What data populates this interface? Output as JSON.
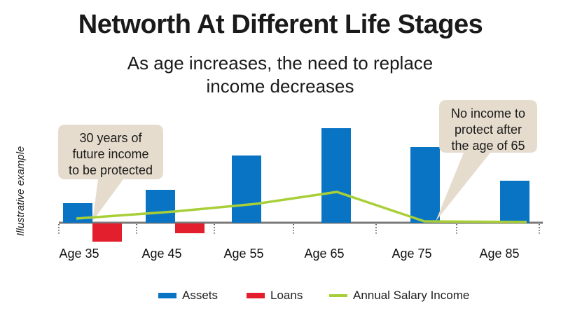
{
  "colors": {
    "assets": "#0a74c4",
    "loans": "#e31e2d",
    "salary": "#a8cf38",
    "axis": "#7a7a7a",
    "callout": "#e6dccd"
  },
  "chart_data": {
    "type": "bar",
    "title": "Networth At Different Life Stages",
    "subtitle": "As age increases, the need to replace income decreases",
    "side_note": "Illustrative example",
    "categories": [
      "Age 35",
      "Age 45",
      "Age 55",
      "Age 65",
      "Age 75",
      "Age 85"
    ],
    "series": [
      {
        "name": "Assets",
        "kind": "bar",
        "values": [
          28,
          47,
          96,
          135,
          108,
          60
        ]
      },
      {
        "name": "Loans",
        "kind": "bar",
        "values": [
          -26,
          -14,
          0,
          0,
          0,
          0
        ]
      },
      {
        "name": "Annual Salary Income",
        "kind": "line",
        "values": [
          6,
          16,
          27,
          44,
          2,
          1
        ]
      }
    ],
    "ylim": [
      -30,
      140
    ],
    "grid": false,
    "legend_position": "bottom",
    "annotations": [
      {
        "text_lines": [
          "30 years of",
          "future income",
          "to be protected"
        ],
        "target": "Age 35"
      },
      {
        "text_lines": [
          "No income to",
          "protect after",
          "the age of 65"
        ],
        "target": "Age 75"
      }
    ]
  }
}
